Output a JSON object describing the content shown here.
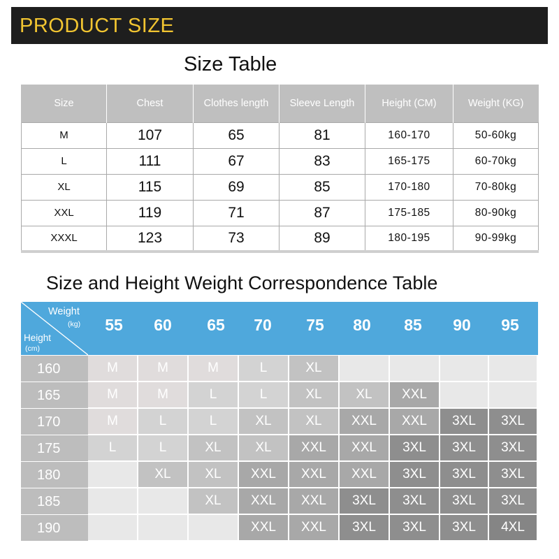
{
  "banner": {
    "title": "PRODUCT SIZE"
  },
  "size_table": {
    "title": "Size Table",
    "headers": [
      "Size",
      "Chest",
      "Clothes length",
      "Sleeve Length",
      "Height (CM)",
      "Weight (KG)"
    ],
    "rows": [
      [
        "M",
        "107",
        "65",
        "81",
        "160-170",
        "50-60kg"
      ],
      [
        "L",
        "111",
        "67",
        "83",
        "165-175",
        "60-70kg"
      ],
      [
        "XL",
        "115",
        "69",
        "85",
        "170-180",
        "70-80kg"
      ],
      [
        "XXL",
        "119",
        "71",
        "87",
        "175-185",
        "80-90kg"
      ],
      [
        "XXXL",
        "123",
        "73",
        "89",
        "180-195",
        "90-99kg"
      ]
    ]
  },
  "correspondence": {
    "title": "Size and Height Weight Correspondence Table",
    "weight_label": "Weight",
    "weight_unit": "(kg)",
    "height_label": "Height",
    "height_unit": "(cm)",
    "weights": [
      "55",
      "60",
      "65",
      "70",
      "75",
      "80",
      "85",
      "90",
      "95"
    ],
    "heights": [
      "160",
      "165",
      "170",
      "175",
      "180",
      "185",
      "190"
    ],
    "grid": [
      [
        "M",
        "M",
        "M",
        "L",
        "XL",
        "",
        "",
        "",
        ""
      ],
      [
        "M",
        "M",
        "L",
        "L",
        "XL",
        "XL",
        "XXL",
        "",
        ""
      ],
      [
        "M",
        "L",
        "L",
        "XL",
        "XL",
        "XXL",
        "XXL",
        "3XL",
        "3XL"
      ],
      [
        "L",
        "L",
        "XL",
        "XL",
        "XXL",
        "XXL",
        "3XL",
        "3XL",
        "3XL"
      ],
      [
        "",
        "XL",
        "XL",
        "XXL",
        "XXL",
        "XXL",
        "3XL",
        "3XL",
        "3XL"
      ],
      [
        "",
        "",
        "XL",
        "XXL",
        "XXL",
        "3XL",
        "3XL",
        "3XL",
        "3XL"
      ],
      [
        "",
        "",
        "",
        "XXL",
        "XXL",
        "3XL",
        "3XL",
        "3XL",
        "4XL"
      ]
    ],
    "colors": {
      "header": "#4fa8dc",
      "height_cell": "#bdbdbd",
      "M": "#e0dcdc",
      "L": "#d3d3d3",
      "XL": "#c2c2c2",
      "XXL": "#a8a8a8",
      "3XL": "#8e8e8e",
      "4XL": "#858585",
      "empty": "#e8e8e8"
    }
  }
}
